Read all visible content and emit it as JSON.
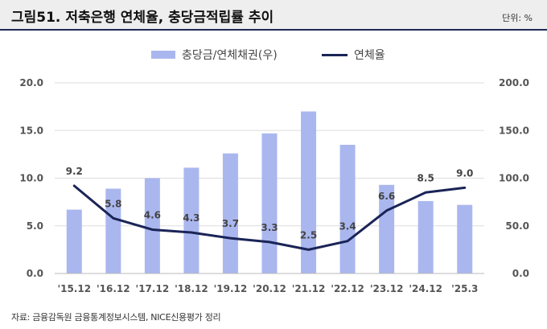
{
  "header": {
    "title": "그림51. 저축은행 연체율, 충당금적립률 추이",
    "unit": "단위: %"
  },
  "footer": {
    "source": "자료: 금융감독원 금융통계정보시스템, NICE신용평가 정리"
  },
  "chart_data": {
    "type": "bar",
    "categories": [
      "'15.12",
      "'16.12",
      "'17.12",
      "'18.12",
      "'19.12",
      "'20.12",
      "'21.12",
      "'22.12",
      "'23.12",
      "'24.12",
      "'25.3"
    ],
    "series": [
      {
        "name": "충당금/연체채권(우)",
        "type": "bar",
        "axis": "right",
        "color": "#aab7ef",
        "values": [
          67,
          89,
          100,
          111,
          126,
          147,
          170,
          135,
          93,
          76,
          72
        ]
      },
      {
        "name": "연체율",
        "type": "line",
        "axis": "left",
        "color": "#1a2456",
        "values": [
          9.2,
          5.8,
          4.6,
          4.3,
          3.7,
          3.3,
          2.5,
          3.4,
          6.6,
          8.5,
          9.0
        ],
        "labels": [
          "9.2",
          "5.8",
          "4.6",
          "4.3",
          "3.7",
          "3.3",
          "2.5",
          "3.4",
          "6.6",
          "8.5",
          "9.0"
        ]
      }
    ],
    "y_left": {
      "range": [
        0,
        20
      ],
      "ticks": [
        "0.0",
        "5.0",
        "10.0",
        "15.0",
        "20.0"
      ]
    },
    "y_right": {
      "range": [
        0,
        200
      ],
      "ticks": [
        "0.0",
        "50.0",
        "100.0",
        "150.0",
        "200.0"
      ]
    },
    "grid": true,
    "legend_position": "top-center"
  }
}
